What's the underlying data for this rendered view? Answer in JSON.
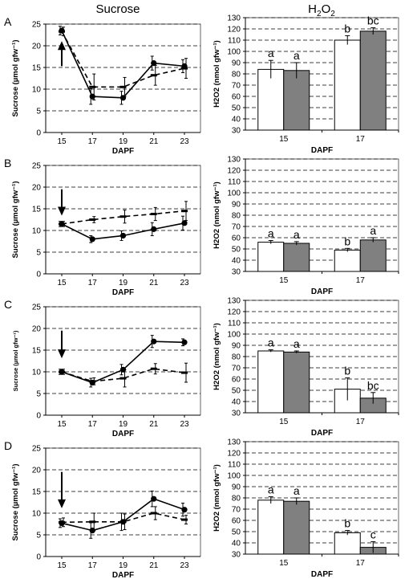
{
  "column_titles": {
    "left": "Sucrose",
    "right": "H2O2",
    "right_main": "H",
    "right_sub1": "2",
    "right_mid": "O",
    "right_sub2": "2"
  },
  "row_labels": [
    "A",
    "B",
    "C",
    "D"
  ],
  "chart_data": [
    {
      "panel": "A-left",
      "type": "line",
      "x": [
        15,
        17,
        19,
        21,
        23
      ],
      "xlabel": "DAPF",
      "ylabel": "Sucrose (µmol gfw⁻¹)",
      "ylim": [
        0,
        25
      ],
      "yticks": [
        0,
        5,
        10,
        15,
        20,
        25
      ],
      "grid": true,
      "series": [
        {
          "style": "solid-circle",
          "values": [
            23.5,
            8.3,
            8.0,
            16.0,
            15.3
          ],
          "err": [
            1.0,
            1.8,
            1.5,
            1.6,
            1.5
          ]
        },
        {
          "style": "dashed-dash",
          "values": [
            23.3,
            10.5,
            10.5,
            13.2,
            14.8
          ],
          "err": [
            1.0,
            3.0,
            2.2,
            2.3,
            2.3
          ]
        }
      ],
      "arrow": {
        "x": 15,
        "from": 15.3,
        "to": 20.7,
        "direction": "up"
      }
    },
    {
      "panel": "A-right",
      "type": "bar",
      "categories": [
        "15",
        "17"
      ],
      "xlabel": "DAPF",
      "ylabel": "H2O2 (nmol gfw⁻¹)",
      "ylim": [
        30,
        130
      ],
      "yticks": [
        30,
        40,
        50,
        60,
        70,
        80,
        90,
        100,
        110,
        120,
        130
      ],
      "grid": true,
      "series": [
        {
          "color": "#ffffff",
          "values": [
            84,
            110
          ],
          "err": [
            8,
            4
          ],
          "labels": [
            "a",
            "b"
          ]
        },
        {
          "color": "#808080",
          "values": [
            83,
            118
          ],
          "err": [
            7,
            3
          ],
          "labels": [
            "a",
            "bc"
          ]
        }
      ]
    },
    {
      "panel": "B-left",
      "type": "line",
      "x": [
        15,
        17,
        19,
        21,
        23
      ],
      "xlabel": "DAPF",
      "ylabel": "Sucrose (µmol gfw⁻¹)",
      "ylim": [
        0,
        25
      ],
      "yticks": [
        0,
        5,
        10,
        15,
        20,
        25
      ],
      "grid": true,
      "series": [
        {
          "style": "solid-circle",
          "values": [
            11.5,
            8.0,
            8.8,
            10.3,
            11.7
          ],
          "err": [
            0.6,
            0.8,
            1.1,
            1.5,
            1.6
          ]
        },
        {
          "style": "dashed-dash",
          "values": [
            11.5,
            12.5,
            13.2,
            13.8,
            14.5
          ],
          "err": [
            0.6,
            0.7,
            1.5,
            1.5,
            2.2
          ]
        }
      ],
      "arrow": {
        "x": 15,
        "from": 19.5,
        "to": 13.8,
        "direction": "down"
      }
    },
    {
      "panel": "B-right",
      "type": "bar",
      "categories": [
        "15",
        "17"
      ],
      "xlabel": "DAPF",
      "ylabel": "H2O2 (nmol gfw⁻¹)",
      "ylim": [
        30,
        130
      ],
      "yticks": [
        30,
        40,
        50,
        60,
        70,
        80,
        90,
        100,
        110,
        120,
        130
      ],
      "grid": true,
      "series": [
        {
          "color": "#ffffff",
          "values": [
            56,
            49
          ],
          "err": [
            1.5,
            1.5
          ],
          "labels": [
            "a",
            "b"
          ]
        },
        {
          "color": "#808080",
          "values": [
            55,
            58
          ],
          "err": [
            1.5,
            2
          ],
          "labels": [
            "a",
            "a"
          ]
        }
      ]
    },
    {
      "panel": "C-left",
      "type": "line",
      "x": [
        15,
        17,
        19,
        21,
        23
      ],
      "xlabel": "DAPF",
      "ylabel": "Sucrose (µmol gfw⁻¹)",
      "ylim": [
        0,
        25
      ],
      "yticks": [
        0,
        5,
        10,
        15,
        20,
        25
      ],
      "grid": true,
      "series": [
        {
          "style": "solid-circle",
          "values": [
            10.0,
            7.5,
            10.5,
            17.0,
            16.8
          ],
          "err": [
            0.6,
            1.0,
            1.2,
            1.4,
            0.8
          ]
        },
        {
          "style": "dashed-dash",
          "values": [
            10.0,
            7.8,
            8.5,
            10.7,
            9.8
          ],
          "err": [
            0.6,
            0.8,
            2.0,
            1.2,
            2.2
          ]
        }
      ],
      "arrow": {
        "x": 15,
        "from": 19.5,
        "to": 13.5,
        "direction": "down"
      }
    },
    {
      "panel": "C-right",
      "type": "bar",
      "categories": [
        "15",
        "17"
      ],
      "xlabel": "DAPF",
      "ylabel": "H2O2 (nmol gfw⁻¹)",
      "ylim": [
        30,
        130
      ],
      "yticks": [
        30,
        40,
        50,
        60,
        70,
        80,
        90,
        100,
        110,
        120,
        130
      ],
      "grid": true,
      "series": [
        {
          "color": "#ffffff",
          "values": [
            85,
            51
          ],
          "err": [
            1,
            10
          ],
          "labels": [
            "a",
            "b"
          ]
        },
        {
          "color": "#808080",
          "values": [
            84,
            43
          ],
          "err": [
            1,
            5
          ],
          "labels": [
            "a",
            "bc"
          ]
        }
      ]
    },
    {
      "panel": "D-left",
      "type": "line",
      "x": [
        15,
        17,
        19,
        21,
        23
      ],
      "xlabel": "DAPF",
      "ylabel": "Sucrose (µmol gfw⁻¹)",
      "ylim": [
        0,
        25
      ],
      "yticks": [
        0,
        5,
        10,
        15,
        20,
        25
      ],
      "grid": true,
      "series": [
        {
          "style": "solid-circle",
          "values": [
            7.7,
            6.0,
            8.0,
            13.3,
            10.8
          ],
          "err": [
            1.0,
            1.8,
            2.0,
            1.8,
            1.5
          ]
        },
        {
          "style": "dashed-dash",
          "values": [
            7.9,
            8.0,
            8.0,
            10.0,
            8.5
          ],
          "err": [
            1.0,
            2.0,
            1.8,
            1.5,
            1.0
          ]
        }
      ],
      "arrow": {
        "x": 15,
        "from": 19.5,
        "to": 11.5,
        "direction": "down"
      }
    },
    {
      "panel": "D-right",
      "type": "bar",
      "categories": [
        "15",
        "17"
      ],
      "xlabel": "DAPF",
      "ylabel": "H2O2 (nmol gfw⁻¹)",
      "ylim": [
        30,
        130
      ],
      "yticks": [
        30,
        40,
        50,
        60,
        70,
        80,
        90,
        100,
        110,
        120,
        130
      ],
      "grid": true,
      "series": [
        {
          "color": "#ffffff",
          "values": [
            78,
            49
          ],
          "err": [
            3,
            2
          ],
          "labels": [
            "a",
            "b"
          ]
        },
        {
          "color": "#808080",
          "values": [
            77,
            36
          ],
          "err": [
            3,
            5
          ],
          "labels": [
            "a",
            "c"
          ]
        }
      ]
    }
  ]
}
